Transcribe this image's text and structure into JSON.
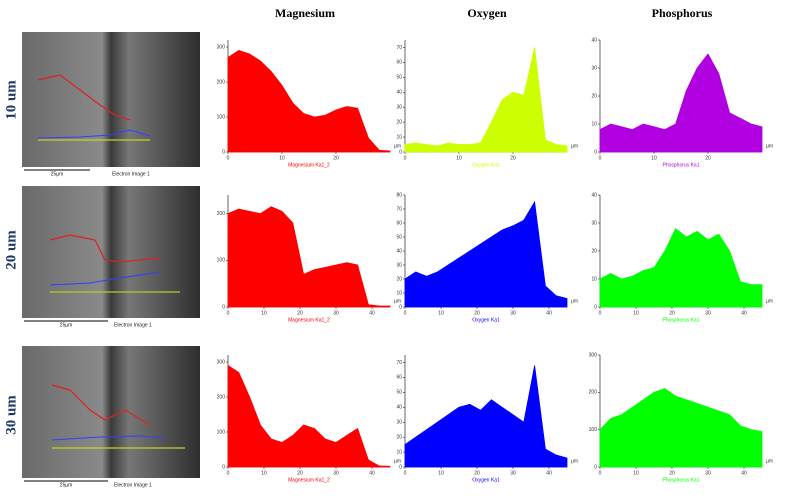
{
  "headers": [
    "Magnesium",
    "Oxygen",
    "Phosphorus"
  ],
  "rows": [
    "10 um",
    "20 um",
    "30 um"
  ],
  "images": [
    {
      "scale": "25µm",
      "caption": "Electron Image 1"
    },
    {
      "scale": "25µm",
      "caption": "Electron Image 1"
    },
    {
      "scale": "25µm",
      "caption": "Electron Image 1"
    }
  ],
  "chart_data": [
    {
      "type": "area",
      "color": "#ff0000",
      "xlabel": "Magnesium Ka1_2",
      "x_unit": "µm",
      "x": [
        0,
        2,
        4,
        6,
        8,
        10,
        12,
        14,
        16,
        18,
        20,
        22,
        24,
        26,
        28,
        30
      ],
      "values": [
        270,
        290,
        280,
        260,
        230,
        190,
        140,
        110,
        100,
        105,
        120,
        130,
        125,
        40,
        5,
        3
      ],
      "xlim": [
        0,
        30
      ],
      "ylim": [
        0,
        320
      ],
      "xticks": [
        0,
        10,
        20
      ],
      "yticks": [
        0,
        100,
        200,
        300
      ]
    },
    {
      "type": "area",
      "color": "#ccff00",
      "xlabel": "Oxygen Ka1",
      "x_unit": "µm",
      "x": [
        0,
        2,
        4,
        6,
        8,
        10,
        12,
        14,
        16,
        18,
        20,
        22,
        24,
        26,
        28,
        30
      ],
      "values": [
        5,
        6,
        5,
        4,
        6,
        5,
        5,
        6,
        20,
        35,
        40,
        38,
        70,
        8,
        5,
        4
      ],
      "xlim": [
        0,
        30
      ],
      "ylim": [
        0,
        75
      ],
      "xticks": [
        0,
        10,
        20
      ],
      "yticks": [
        0,
        10,
        20,
        30,
        40,
        50,
        60,
        70
      ]
    },
    {
      "type": "area",
      "color": "#b000e0",
      "xlabel": "Phosphorus Ka1",
      "x_unit": "µm",
      "x": [
        0,
        2,
        4,
        6,
        8,
        10,
        12,
        14,
        16,
        18,
        20,
        22,
        24,
        26,
        28,
        30
      ],
      "values": [
        8,
        10,
        9,
        8,
        10,
        9,
        8,
        10,
        22,
        30,
        35,
        28,
        14,
        12,
        10,
        9
      ],
      "xlim": [
        0,
        30
      ],
      "ylim": [
        0,
        40
      ],
      "xticks": [
        0,
        10,
        20
      ],
      "yticks": [
        0,
        10,
        20,
        30,
        40
      ]
    },
    {
      "type": "area",
      "color": "#ff0000",
      "xlabel": "Magnesium Ka1_2",
      "x_unit": "µm",
      "x": [
        0,
        3,
        6,
        9,
        12,
        15,
        18,
        21,
        24,
        27,
        30,
        33,
        36,
        39,
        42,
        45
      ],
      "values": [
        200,
        210,
        205,
        200,
        215,
        205,
        180,
        70,
        80,
        85,
        90,
        95,
        90,
        5,
        2,
        2
      ],
      "xlim": [
        0,
        45
      ],
      "ylim": [
        0,
        240
      ],
      "xticks": [
        0,
        10,
        20,
        30,
        40
      ],
      "yticks": [
        0,
        100,
        200
      ]
    },
    {
      "type": "area",
      "color": "#0000ff",
      "xlabel": "Oxygen Ka1",
      "x_unit": "µm",
      "x": [
        0,
        3,
        6,
        9,
        12,
        15,
        18,
        21,
        24,
        27,
        30,
        33,
        36,
        39,
        42,
        45
      ],
      "values": [
        20,
        25,
        22,
        25,
        30,
        35,
        40,
        45,
        50,
        55,
        58,
        62,
        75,
        15,
        8,
        6
      ],
      "xlim": [
        0,
        45
      ],
      "ylim": [
        0,
        80
      ],
      "xticks": [
        0,
        10,
        20,
        30,
        40
      ],
      "yticks": [
        0,
        10,
        20,
        30,
        40,
        50,
        60,
        70,
        80
      ]
    },
    {
      "type": "area",
      "color": "#00ff00",
      "xlabel": "Phosphorus Ka1",
      "x_unit": "µm",
      "x": [
        0,
        3,
        6,
        9,
        12,
        15,
        18,
        21,
        24,
        27,
        30,
        33,
        36,
        39,
        42,
        45
      ],
      "values": [
        10,
        12,
        10,
        11,
        13,
        14,
        20,
        28,
        25,
        27,
        24,
        26,
        20,
        9,
        8,
        8
      ],
      "xlim": [
        0,
        45
      ],
      "ylim": [
        0,
        40
      ],
      "xticks": [
        0,
        10,
        20,
        30,
        40
      ],
      "yticks": [
        0,
        10,
        20,
        30,
        40
      ]
    },
    {
      "type": "area",
      "color": "#ff0000",
      "xlabel": "Magnesium Ka1_2",
      "x_unit": "µm",
      "x": [
        0,
        3,
        6,
        9,
        12,
        15,
        18,
        21,
        24,
        27,
        30,
        33,
        36,
        39,
        42,
        45
      ],
      "values": [
        290,
        270,
        200,
        120,
        80,
        70,
        90,
        120,
        110,
        80,
        70,
        90,
        110,
        20,
        3,
        2
      ],
      "xlim": [
        0,
        45
      ],
      "ylim": [
        0,
        320
      ],
      "xticks": [
        0,
        10,
        20,
        30,
        40
      ],
      "yticks": [
        0,
        100,
        200,
        300
      ]
    },
    {
      "type": "area",
      "color": "#0000ff",
      "xlabel": "Oxygen Ka1",
      "x_unit": "µm",
      "x": [
        0,
        3,
        6,
        9,
        12,
        15,
        18,
        21,
        24,
        27,
        30,
        33,
        36,
        39,
        42,
        45
      ],
      "values": [
        15,
        20,
        25,
        30,
        35,
        40,
        42,
        38,
        45,
        40,
        35,
        30,
        68,
        12,
        8,
        6
      ],
      "xlim": [
        0,
        45
      ],
      "ylim": [
        0,
        75
      ],
      "xticks": [
        0,
        10,
        20,
        30,
        40
      ],
      "yticks": [
        0,
        10,
        20,
        30,
        40,
        50,
        60,
        70
      ]
    },
    {
      "type": "area",
      "color": "#00ff00",
      "xlabel": "Phosphorus Ka1",
      "x_unit": "µm",
      "x": [
        0,
        3,
        6,
        9,
        12,
        15,
        18,
        21,
        24,
        27,
        30,
        33,
        36,
        39,
        42,
        45
      ],
      "values": [
        100,
        130,
        140,
        160,
        180,
        200,
        210,
        190,
        180,
        170,
        160,
        150,
        140,
        110,
        100,
        95
      ],
      "xlim": [
        0,
        45
      ],
      "ylim": [
        0,
        300
      ],
      "xticks": [
        0,
        10,
        20,
        30,
        40
      ],
      "yticks": [
        0,
        100,
        200,
        300
      ]
    }
  ]
}
